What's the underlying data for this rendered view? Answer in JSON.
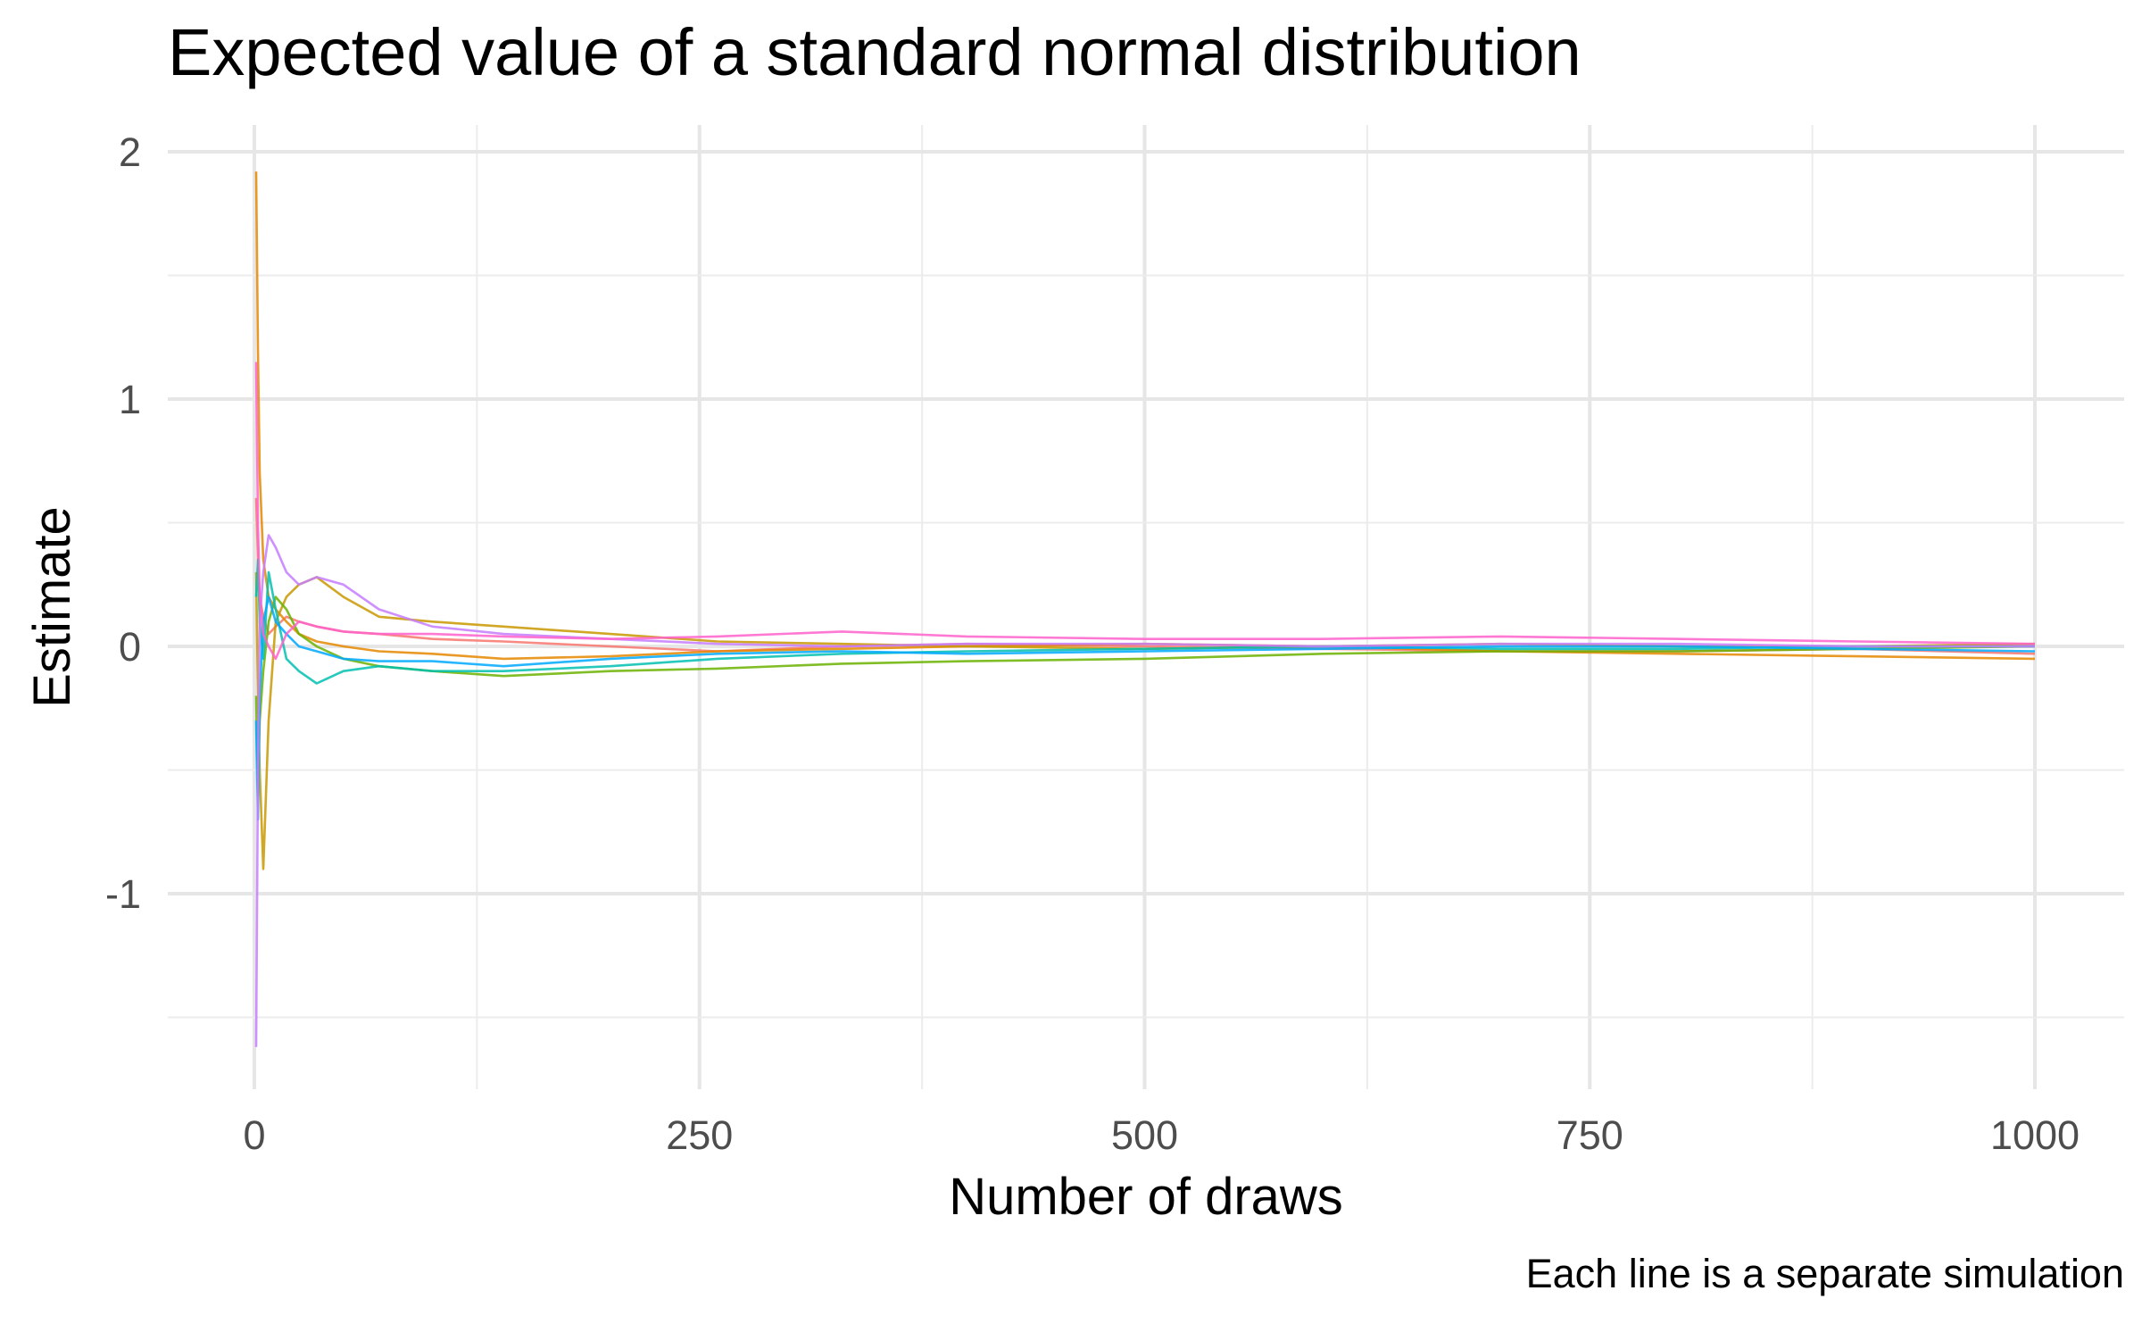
{
  "chart_data": {
    "type": "line",
    "title": "Expected value of a standard normal distribution",
    "caption": "Each line is a separate simulation",
    "xlabel": "Number of draws",
    "ylabel": "Estimate",
    "xlim": [
      1,
      1000
    ],
    "ylim": [
      -1.75,
      2.1
    ],
    "x_ticks": [
      0,
      250,
      500,
      750,
      1000
    ],
    "x_tick_labels": [
      "0",
      "250",
      "500",
      "750",
      "1000"
    ],
    "y_ticks": [
      -1,
      0,
      1,
      2
    ],
    "y_tick_labels": [
      "-1",
      "0",
      "1",
      "2"
    ],
    "grid": true,
    "legend": "none",
    "x": [
      1,
      2,
      3,
      5,
      8,
      12,
      18,
      25,
      35,
      50,
      70,
      100,
      140,
      200,
      260,
      330,
      400,
      500,
      600,
      700,
      800,
      900,
      1000
    ],
    "series": [
      {
        "color": "#F8766D",
        "values": [
          0.6,
          0.35,
          0.2,
          0.12,
          0.05,
          0.08,
          0.12,
          0.1,
          0.08,
          0.06,
          0.05,
          0.03,
          0.02,
          0.0,
          -0.02,
          0.0,
          0.01,
          0.0,
          -0.01,
          -0.02,
          -0.02,
          -0.01,
          -0.03
        ]
      },
      {
        "color": "#E58700",
        "values": [
          1.92,
          1.2,
          0.7,
          0.35,
          0.2,
          0.15,
          0.1,
          0.05,
          0.02,
          0.0,
          -0.02,
          -0.03,
          -0.05,
          -0.04,
          -0.02,
          -0.01,
          0.0,
          0.01,
          0.0,
          -0.02,
          -0.03,
          -0.04,
          -0.05
        ]
      },
      {
        "color": "#C99800",
        "values": [
          0.3,
          -0.2,
          -0.5,
          -0.9,
          -0.3,
          0.1,
          0.2,
          0.25,
          0.28,
          0.2,
          0.12,
          0.1,
          0.08,
          0.05,
          0.02,
          0.01,
          0.0,
          -0.01,
          0.0,
          0.01,
          0.0,
          0.0,
          0.01
        ]
      },
      {
        "color": "#6BB100",
        "values": [
          -0.2,
          -0.6,
          -0.3,
          -0.1,
          0.1,
          0.2,
          0.15,
          0.05,
          0.0,
          -0.05,
          -0.08,
          -0.1,
          -0.12,
          -0.1,
          -0.09,
          -0.07,
          -0.06,
          -0.05,
          -0.03,
          -0.02,
          -0.02,
          -0.01,
          0.0
        ]
      },
      {
        "color": "#00C0AF",
        "values": [
          0.2,
          0.35,
          0.1,
          -0.05,
          0.3,
          0.15,
          -0.05,
          -0.1,
          -0.15,
          -0.1,
          -0.08,
          -0.1,
          -0.1,
          -0.08,
          -0.05,
          -0.03,
          -0.02,
          -0.01,
          0.0,
          -0.01,
          -0.01,
          0.0,
          0.0
        ]
      },
      {
        "color": "#00A9FF",
        "values": [
          -0.3,
          -0.7,
          -0.2,
          0.1,
          0.2,
          0.1,
          0.05,
          0.0,
          -0.02,
          -0.05,
          -0.06,
          -0.06,
          -0.08,
          -0.05,
          -0.03,
          -0.02,
          -0.03,
          -0.02,
          -0.01,
          0.0,
          0.0,
          -0.01,
          -0.02
        ]
      },
      {
        "color": "#C77CFF",
        "values": [
          -1.62,
          -0.5,
          0.1,
          0.3,
          0.45,
          0.4,
          0.3,
          0.25,
          0.28,
          0.25,
          0.15,
          0.08,
          0.05,
          0.03,
          0.01,
          0.0,
          0.01,
          0.01,
          0.0,
          0.01,
          0.01,
          0.0,
          0.0
        ]
      },
      {
        "color": "#FF61CC",
        "values": [
          1.15,
          0.5,
          0.2,
          0.05,
          0.0,
          -0.05,
          0.05,
          0.1,
          0.08,
          0.06,
          0.05,
          0.05,
          0.04,
          0.03,
          0.04,
          0.06,
          0.04,
          0.03,
          0.03,
          0.04,
          0.03,
          0.02,
          0.01
        ]
      }
    ]
  }
}
